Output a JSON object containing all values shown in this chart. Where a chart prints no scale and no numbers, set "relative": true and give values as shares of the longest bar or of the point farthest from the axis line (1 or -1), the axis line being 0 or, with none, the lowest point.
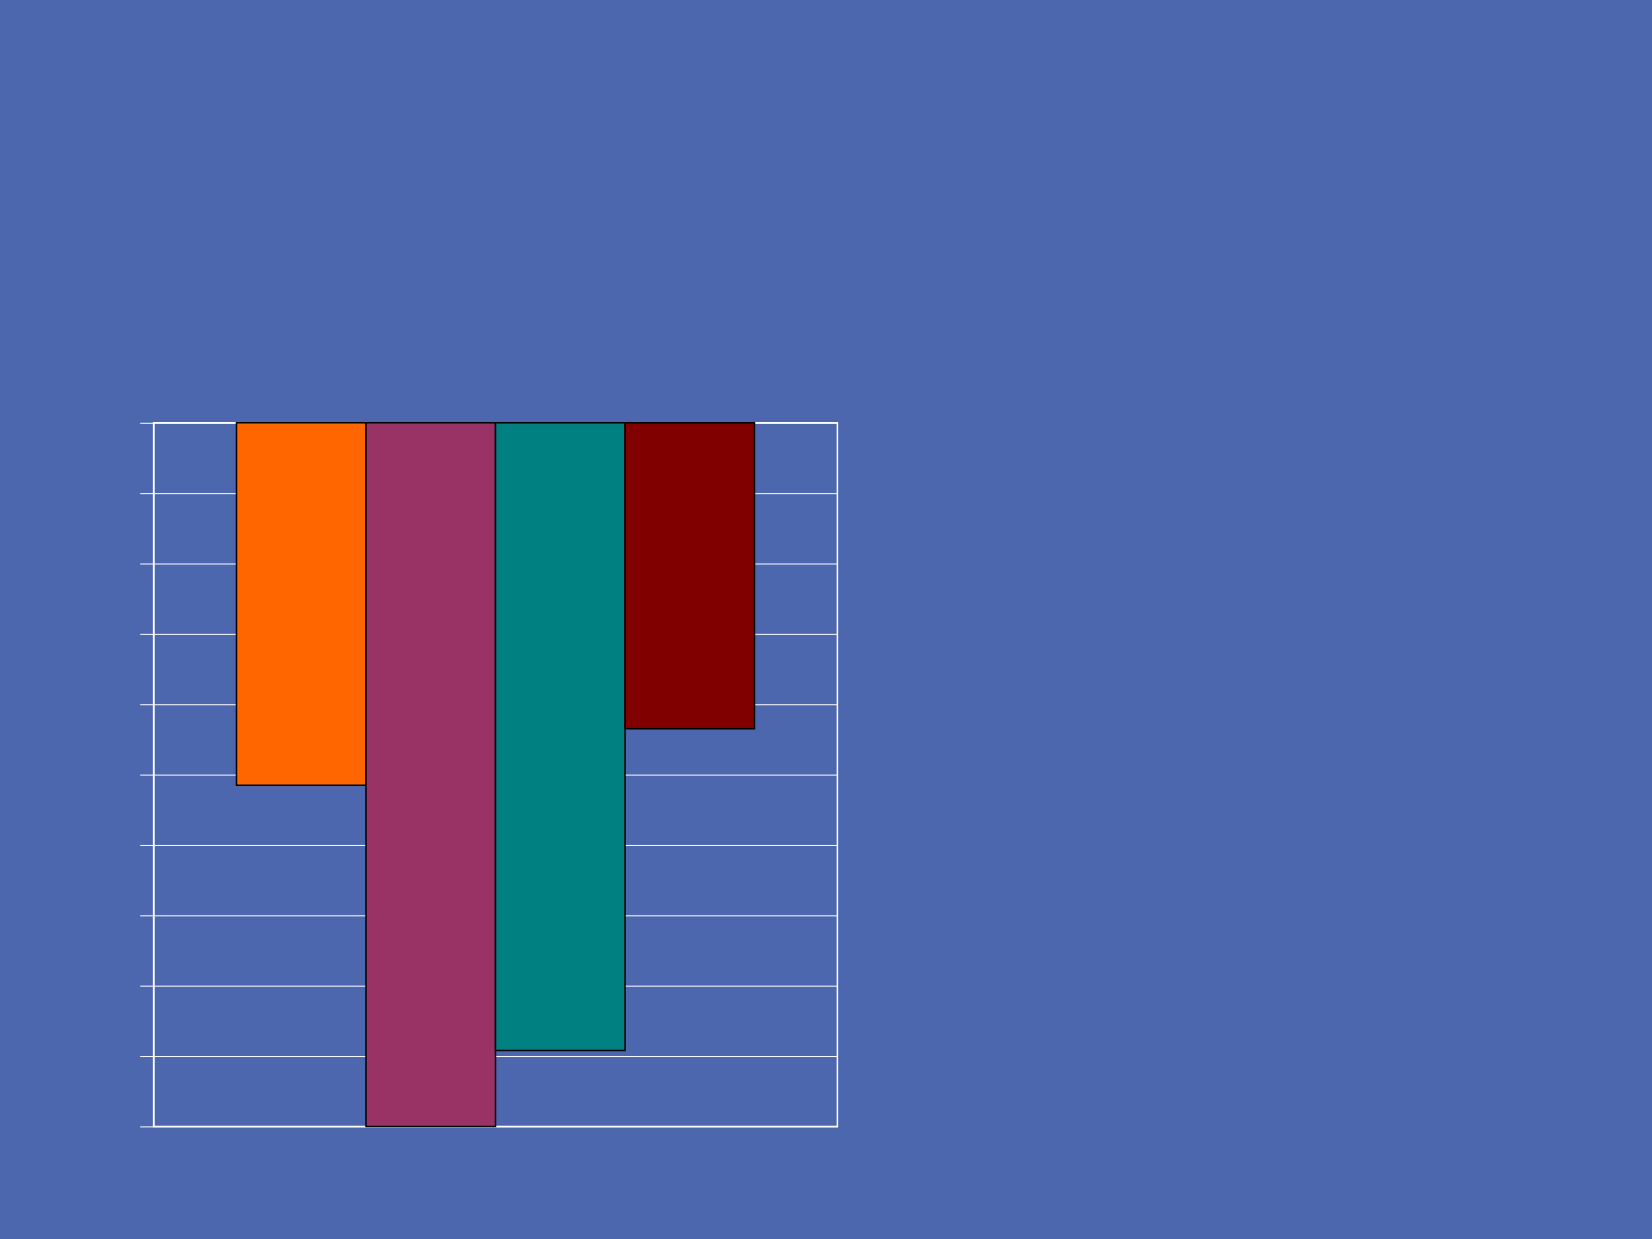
{
  "chart_data": {
    "type": "bar",
    "relative": true,
    "categories": [
      null
    ],
    "grid": "y",
    "tick_labels": false,
    "series": [
      {
        "color": "#ff6600",
        "values": [
          -0.515
        ]
      },
      {
        "color": "#993366",
        "values": [
          -1
        ]
      },
      {
        "color": "#008080",
        "values": [
          -0.892
        ]
      },
      {
        "color": "#800000",
        "values": [
          -0.435
        ]
      }
    ]
  }
}
